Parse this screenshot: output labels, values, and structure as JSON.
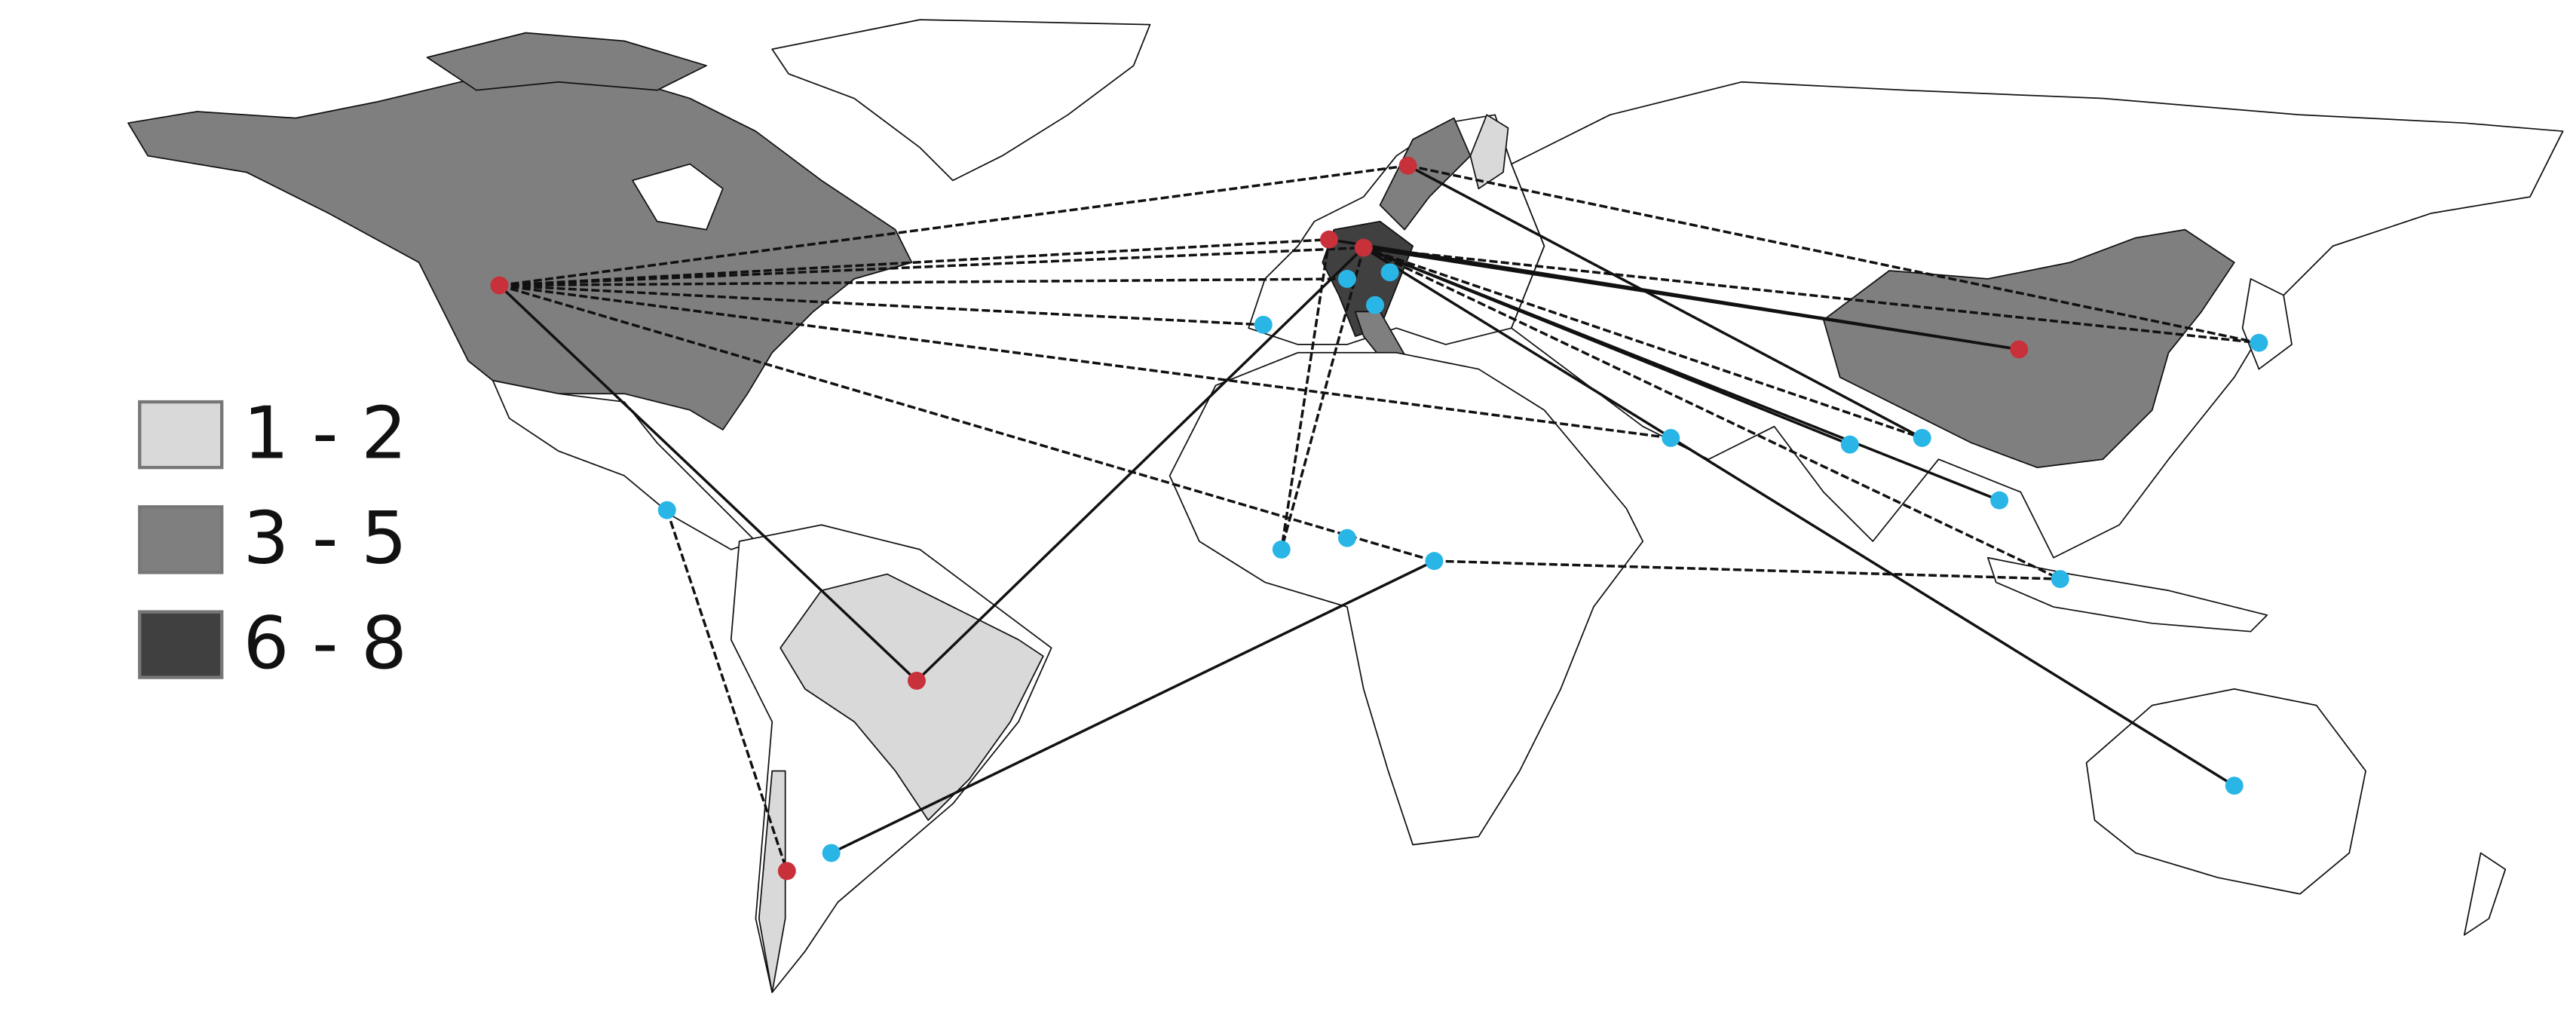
{
  "legend": {
    "items": [
      {
        "label": "1 - 2",
        "color": "#d9d9d9"
      },
      {
        "label": "3 - 5",
        "color": "#7f7f7f"
      },
      {
        "label": "6 - 8",
        "color": "#404040"
      }
    ]
  }
}
